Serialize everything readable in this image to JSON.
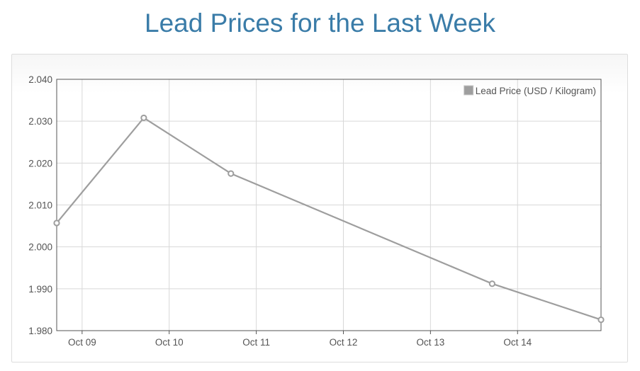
{
  "page": {
    "title": "Lead Prices for the Last Week"
  },
  "colors": {
    "title": "#3a7ca8",
    "series_line": "#9e9e9e",
    "grid": "#d8d8d8",
    "axis": "#545454"
  },
  "chart_data": {
    "type": "line",
    "title": "Lead Prices for the Last Week",
    "xlabel": "",
    "ylabel": "",
    "x_axis_type": "date",
    "x_tick_labels": [
      "Oct 09",
      "Oct 10",
      "Oct 11",
      "Oct 12",
      "Oct 13",
      "Oct 14"
    ],
    "xlim": [
      "2023-10-08T17:00",
      "2023-10-14T23:00"
    ],
    "ylim": [
      1.98,
      2.04
    ],
    "y_ticks": [
      2.04,
      2.03,
      2.02,
      2.01,
      2.0,
      1.99,
      1.98
    ],
    "y_tick_labels": [
      "2.040",
      "2.030",
      "2.020",
      "2.010",
      "2.000",
      "1.990",
      "1.980"
    ],
    "grid": true,
    "legend_position": "top-right",
    "series": [
      {
        "name": "Lead Price (USD / Kilogram)",
        "color": "#9e9e9e",
        "points": [
          {
            "x": "2023-10-08T17:00",
            "y": 2.0057
          },
          {
            "x": "2023-10-09T17:00",
            "y": 2.0308
          },
          {
            "x": "2023-10-10T17:00",
            "y": 2.0175
          },
          {
            "x": "2023-10-13T17:00",
            "y": 1.9912
          },
          {
            "x": "2023-10-14T23:00",
            "y": 1.9826
          }
        ]
      }
    ]
  }
}
